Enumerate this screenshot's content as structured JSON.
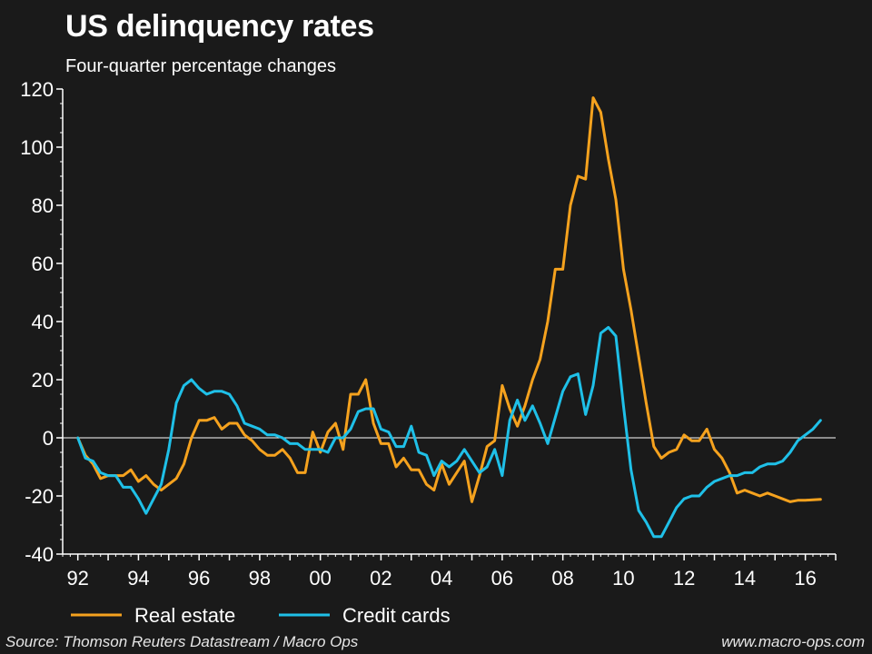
{
  "chart_data": {
    "type": "line",
    "title": "US delinquency rates",
    "subtitle": "Four-quarter percentage changes",
    "xlabel": "",
    "ylabel": "",
    "xlim": [
      1991.5,
      2017.0
    ],
    "ylim": [
      -40,
      120
    ],
    "y_ticks": [
      120,
      100,
      80,
      60,
      40,
      20,
      0,
      -20,
      -40
    ],
    "x_ticks": [
      {
        "value": 1992,
        "label": "92"
      },
      {
        "value": 1994,
        "label": "94"
      },
      {
        "value": 1996,
        "label": "96"
      },
      {
        "value": 1998,
        "label": "98"
      },
      {
        "value": 2000,
        "label": "00"
      },
      {
        "value": 2002,
        "label": "02"
      },
      {
        "value": 2004,
        "label": "04"
      },
      {
        "value": 2006,
        "label": "06"
      },
      {
        "value": 2008,
        "label": "08"
      },
      {
        "value": 2010,
        "label": "10"
      },
      {
        "value": 2012,
        "label": "12"
      },
      {
        "value": 2014,
        "label": "14"
      },
      {
        "value": 2016,
        "label": "16"
      }
    ],
    "zero_line": true,
    "legend_position": "bottom-left",
    "series": [
      {
        "name": "Real estate",
        "color": "#f5a21e",
        "x": [
          1992.0,
          1992.25,
          1992.5,
          1992.75,
          1993.0,
          1993.25,
          1993.5,
          1993.75,
          1994.0,
          1994.25,
          1994.5,
          1994.75,
          1995.0,
          1995.25,
          1995.5,
          1995.75,
          1996.0,
          1996.25,
          1996.5,
          1996.75,
          1997.0,
          1997.25,
          1997.5,
          1997.75,
          1998.0,
          1998.25,
          1998.5,
          1998.75,
          1999.0,
          1999.25,
          1999.5,
          1999.75,
          2000.0,
          2000.25,
          2000.5,
          2000.75,
          2001.0,
          2001.25,
          2001.5,
          2001.75,
          2002.0,
          2002.25,
          2002.5,
          2002.75,
          2003.0,
          2003.25,
          2003.5,
          2003.75,
          2004.0,
          2004.25,
          2004.5,
          2004.75,
          2005.0,
          2005.25,
          2005.5,
          2005.75,
          2006.0,
          2006.25,
          2006.5,
          2006.75,
          2007.0,
          2007.25,
          2007.5,
          2007.75,
          2008.0,
          2008.25,
          2008.5,
          2008.75,
          2009.0,
          2009.25,
          2009.5,
          2009.75,
          2010.0,
          2010.25,
          2010.5,
          2010.75,
          2011.0,
          2011.25,
          2011.5,
          2011.75,
          2012.0,
          2012.25,
          2012.5,
          2012.75,
          2013.0,
          2013.25,
          2013.5,
          2013.75,
          2014.0,
          2014.25,
          2014.5,
          2014.75,
          2015.0,
          2015.25,
          2015.5,
          2015.75,
          2016.0,
          2016.25,
          2016.5
        ],
        "values": [
          0,
          -6,
          -9,
          -14,
          -13,
          -13,
          -13,
          -11,
          -15,
          -13,
          -16,
          -18,
          -16,
          -14,
          -9,
          0,
          6,
          6,
          7,
          3,
          5,
          5,
          1,
          -1,
          -4,
          -6,
          -6,
          -4,
          -7,
          -12,
          -12,
          2,
          -5,
          2,
          5,
          -4,
          15,
          15,
          20,
          5,
          -2,
          -2,
          -10,
          -7,
          -11,
          -11,
          -16,
          -18,
          -9,
          -16,
          -12,
          -8,
          -22,
          -13,
          -3,
          -1,
          18,
          10,
          4,
          11,
          20,
          27,
          40,
          58,
          58,
          80,
          90,
          89,
          117,
          112,
          96,
          82,
          58,
          44,
          28,
          12,
          -3,
          -7,
          -5,
          -4,
          1,
          -1,
          -1,
          3,
          -4,
          -7,
          -12,
          -19,
          -18,
          -19,
          -20,
          -19,
          -20,
          -21,
          -22,
          -21.5,
          -21.5,
          -21.3,
          -21.2
        ]
      },
      {
        "name": "Credit cards",
        "color": "#1fc0e8",
        "x": [
          1992.0,
          1992.25,
          1992.5,
          1992.75,
          1993.0,
          1993.25,
          1993.5,
          1993.75,
          1994.0,
          1994.25,
          1994.5,
          1994.75,
          1995.0,
          1995.25,
          1995.5,
          1995.75,
          1996.0,
          1996.25,
          1996.5,
          1996.75,
          1997.0,
          1997.25,
          1997.5,
          1997.75,
          1998.0,
          1998.25,
          1998.5,
          1998.75,
          1999.0,
          1999.25,
          1999.5,
          1999.75,
          2000.0,
          2000.25,
          2000.5,
          2000.75,
          2001.0,
          2001.25,
          2001.5,
          2001.75,
          2002.0,
          2002.25,
          2002.5,
          2002.75,
          2003.0,
          2003.25,
          2003.5,
          2003.75,
          2004.0,
          2004.25,
          2004.5,
          2004.75,
          2005.0,
          2005.25,
          2005.5,
          2005.75,
          2006.0,
          2006.25,
          2006.5,
          2006.75,
          2007.0,
          2007.25,
          2007.5,
          2007.75,
          2008.0,
          2008.25,
          2008.5,
          2008.75,
          2009.0,
          2009.25,
          2009.5,
          2009.75,
          2010.0,
          2010.25,
          2010.5,
          2010.75,
          2011.0,
          2011.25,
          2011.5,
          2011.75,
          2012.0,
          2012.25,
          2012.5,
          2012.75,
          2013.0,
          2013.25,
          2013.5,
          2013.75,
          2014.0,
          2014.25,
          2014.5,
          2014.75,
          2015.0,
          2015.25,
          2015.5,
          2015.75,
          2016.0,
          2016.25,
          2016.5
        ],
        "values": [
          0,
          -7,
          -8,
          -12,
          -13,
          -13,
          -17,
          -17,
          -21,
          -26,
          -21,
          -16,
          -4,
          12,
          18,
          20,
          17,
          15,
          16,
          16,
          15,
          11,
          5,
          4,
          3,
          1,
          1,
          0,
          -2,
          -2,
          -4,
          -4,
          -4,
          -5,
          0,
          0,
          3,
          9,
          10,
          10,
          3,
          2,
          -3,
          -3,
          4,
          -5,
          -6,
          -13,
          -8,
          -10,
          -8,
          -4,
          -8,
          -12,
          -10,
          -4,
          -13,
          6,
          13,
          6,
          11,
          5,
          -2,
          7,
          16,
          21,
          22,
          8,
          18,
          36,
          38,
          35,
          11,
          -11,
          -25,
          -29,
          -34,
          -34,
          -29,
          -24,
          -21,
          -20,
          -20,
          -17,
          -15,
          -14,
          -13,
          -13,
          -12,
          -12,
          -10,
          -9,
          -9,
          -8,
          -5,
          -1,
          1,
          3,
          6
        ]
      }
    ]
  },
  "footer": {
    "source": "Source: Thomson Reuters Datastream / Macro Ops",
    "credit": "www.macro-ops.com"
  }
}
